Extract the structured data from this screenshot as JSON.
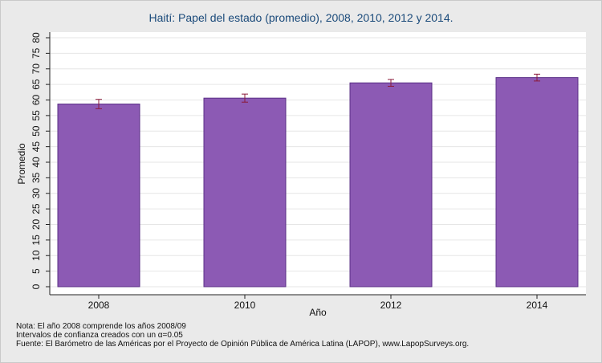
{
  "chart_data": {
    "type": "bar",
    "title": "Haití: Papel del estado (promedio), 2008, 2010, 2012 y 2014.",
    "xlabel": "Año",
    "ylabel": "Promedio",
    "categories": [
      "2008",
      "2010",
      "2012",
      "2014"
    ],
    "values": [
      58.7,
      60.6,
      65.5,
      67.2
    ],
    "ci_lower": [
      57.2,
      59.3,
      64.4,
      66.1
    ],
    "ci_upper": [
      60.2,
      61.9,
      66.6,
      68.3
    ],
    "ylim": [
      0,
      80
    ],
    "yticks": [
      0,
      5,
      10,
      15,
      20,
      25,
      30,
      35,
      40,
      45,
      50,
      55,
      60,
      65,
      70,
      75,
      80
    ],
    "grid": true,
    "colors": {
      "bar_fill": "#8c5ab4",
      "bar_stroke": "#5a2f86",
      "error_bar": "#8b1a3a",
      "plot_bg": "#ffffff",
      "title": "#1a4a7a"
    }
  },
  "notes": {
    "line1": "Nota: El año 2008 comprende los años 2008/09",
    "line2": "Intervalos de confianza creados con un α=0.05",
    "line3": "Fuente: El Barómetro de las Américas por el Proyecto de Opinión Pública de América Latina (LAPOP), www.LapopSurveys.org."
  }
}
